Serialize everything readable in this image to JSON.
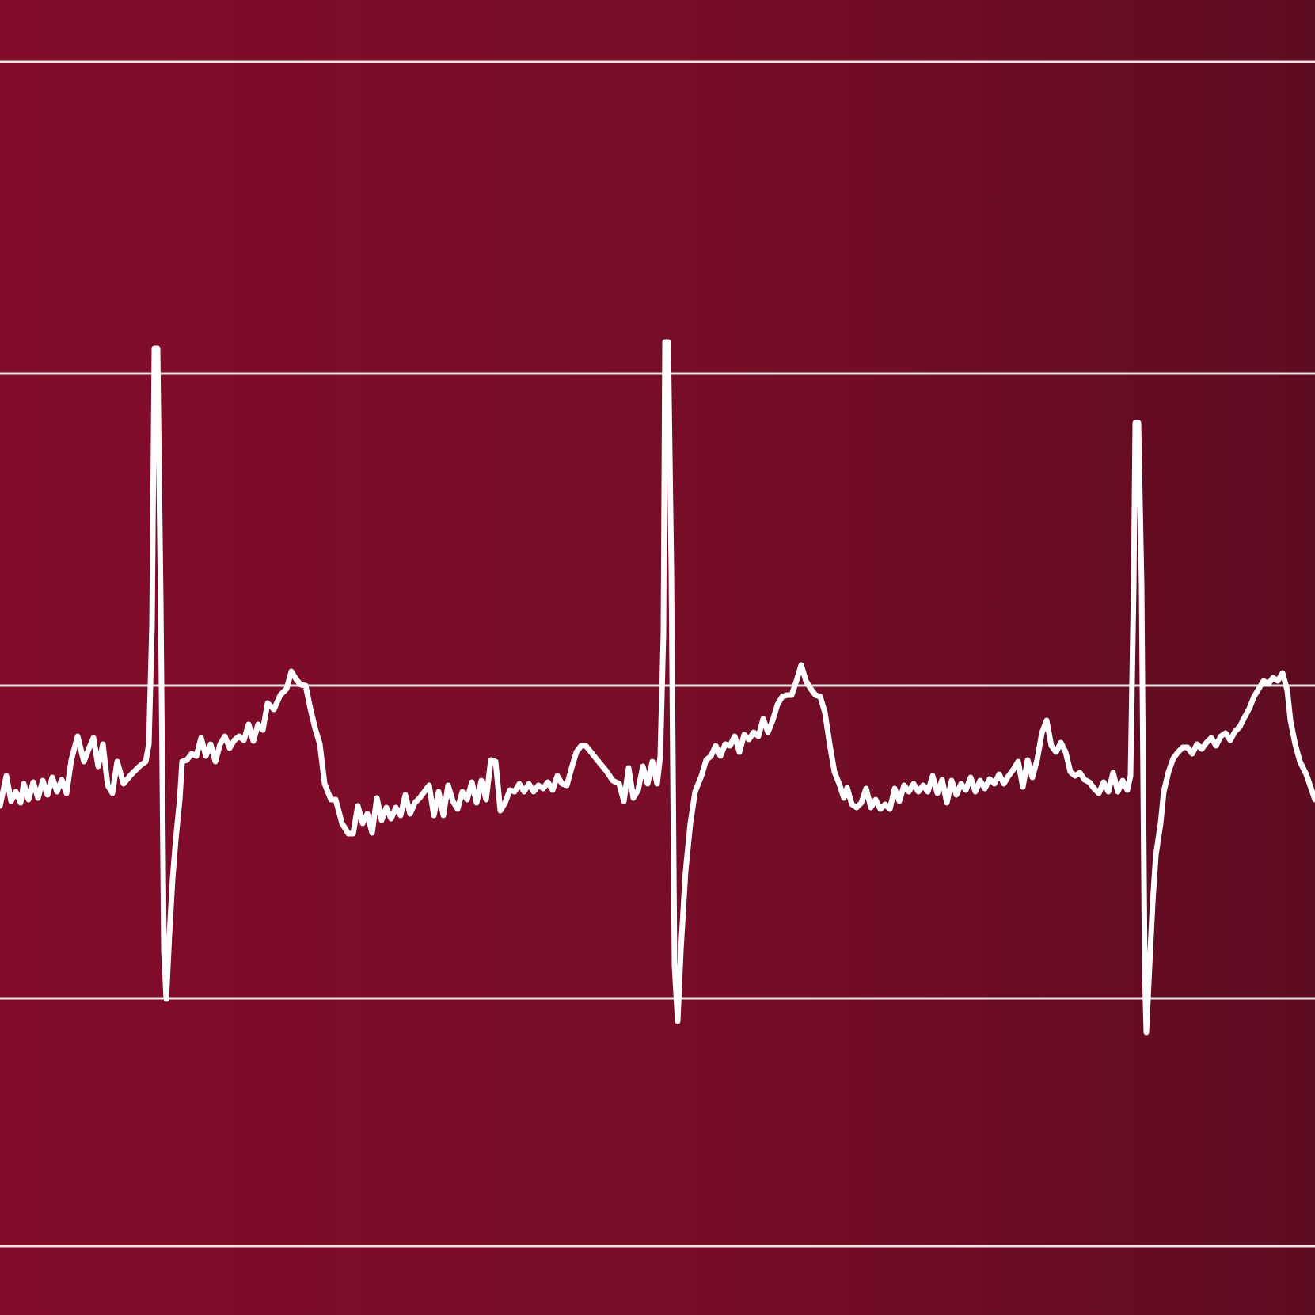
{
  "colors": {
    "background_left": "#820c2a",
    "background_mid": "#780d27",
    "background_right": "#5e0c21",
    "gridline": "#f6eef0",
    "trace": "#ffffff"
  },
  "waveform": {
    "icon": "ecg-heartbeat-trace",
    "beats_visible": 3,
    "horizontal_gridlines": 5
  }
}
